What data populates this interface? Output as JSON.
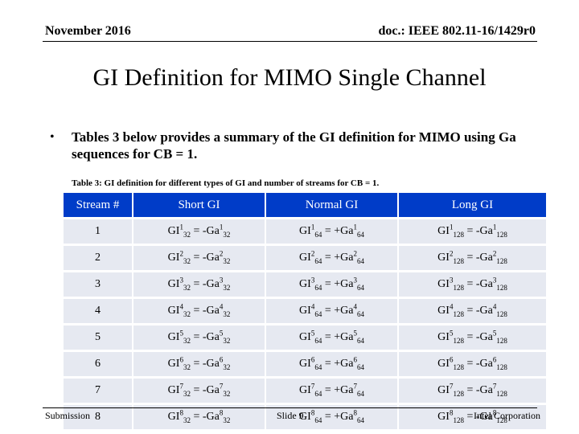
{
  "header": {
    "date": "November 2016",
    "doc": "doc.: IEEE 802.11-16/1429r0"
  },
  "title": "GI Definition for MIMO Single Channel",
  "bullet": {
    "symbol": "•",
    "text": "Tables 3 below provides a summary of the GI definition for MIMO using Ga sequences for CB = 1."
  },
  "table": {
    "caption": "Table 3: GI definition for different types of GI and number of streams for CB = 1.",
    "header_color": "#003cc8",
    "row_color": "#e6e9f1",
    "columns": [
      "Stream #",
      "Short GI",
      "Normal GI",
      "Long GI"
    ],
    "rows": [
      {
        "stream": "1",
        "short": {
          "sign": "-",
          "n": "1"
        },
        "normal": {
          "sign": "+",
          "n": "1"
        },
        "long": {
          "sign": "-",
          "n": "1"
        }
      },
      {
        "stream": "2",
        "short": {
          "sign": "-",
          "n": "2"
        },
        "normal": {
          "sign": "+",
          "n": "2"
        },
        "long": {
          "sign": "-",
          "n": "2"
        }
      },
      {
        "stream": "3",
        "short": {
          "sign": "-",
          "n": "3"
        },
        "normal": {
          "sign": "+",
          "n": "3"
        },
        "long": {
          "sign": "-",
          "n": "3"
        }
      },
      {
        "stream": "4",
        "short": {
          "sign": "-",
          "n": "4"
        },
        "normal": {
          "sign": "+",
          "n": "4"
        },
        "long": {
          "sign": "-",
          "n": "4"
        }
      },
      {
        "stream": "5",
        "short": {
          "sign": "-",
          "n": "5"
        },
        "normal": {
          "sign": "+",
          "n": "5"
        },
        "long": {
          "sign": "-",
          "n": "5"
        }
      },
      {
        "stream": "6",
        "short": {
          "sign": "-",
          "n": "6"
        },
        "normal": {
          "sign": "+",
          "n": "6"
        },
        "long": {
          "sign": "-",
          "n": "6"
        }
      },
      {
        "stream": "7",
        "short": {
          "sign": "-",
          "n": "7"
        },
        "normal": {
          "sign": "+",
          "n": "7"
        },
        "long": {
          "sign": "-",
          "n": "7"
        }
      },
      {
        "stream": "8",
        "short": {
          "sign": "-",
          "n": "8"
        },
        "normal": {
          "sign": "+",
          "n": "8"
        },
        "long": {
          "sign": "-",
          "n": "8"
        }
      }
    ],
    "lengths": {
      "short": "32",
      "normal": "64",
      "long": "128"
    }
  },
  "footer": {
    "left": "Submission",
    "center": "Slide 9",
    "right": "Intel Corporation"
  }
}
